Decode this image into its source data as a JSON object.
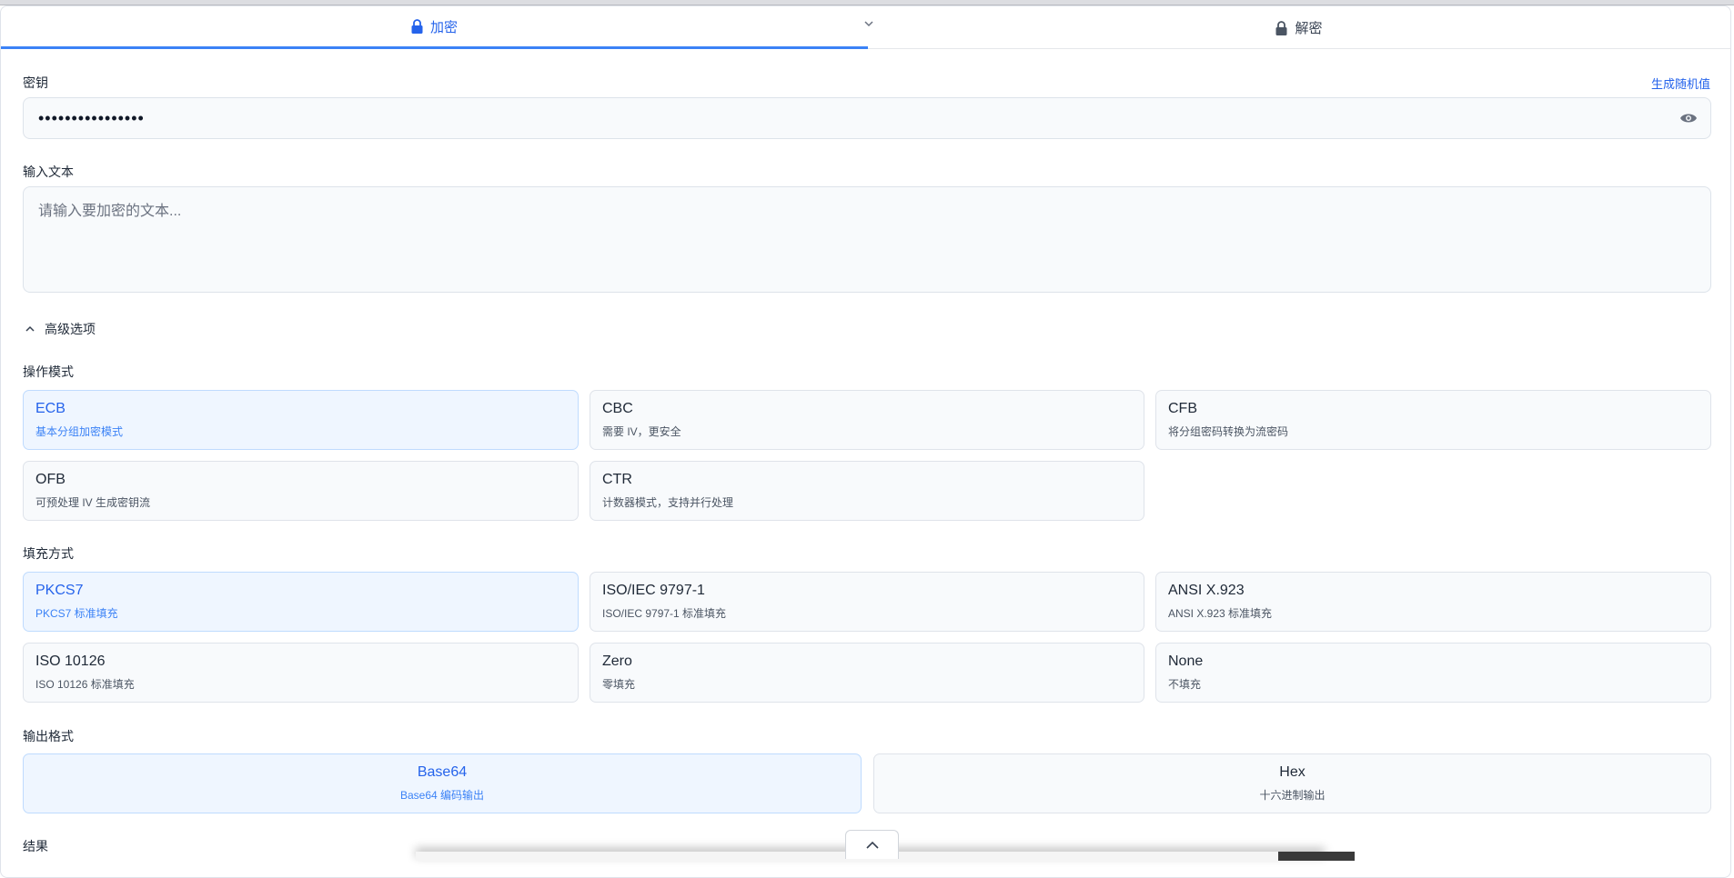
{
  "tabs": [
    {
      "label": "加密",
      "active": true,
      "icon": "lock-icon"
    },
    {
      "label": "解密",
      "active": false,
      "icon": "lock-icon"
    }
  ],
  "key": {
    "label": "密钥",
    "generate_label": "生成随机值",
    "value": "••••••••••••••••"
  },
  "input": {
    "label": "输入文本",
    "placeholder": "请输入要加密的文本..."
  },
  "advanced": {
    "label": "高级选项",
    "expanded": true
  },
  "mode": {
    "label": "操作模式",
    "options": [
      {
        "title": "ECB",
        "desc": "基本分组加密模式",
        "selected": true
      },
      {
        "title": "CBC",
        "desc": "需要 IV，更安全"
      },
      {
        "title": "CFB",
        "desc": "将分组密码转换为流密码"
      },
      {
        "title": "OFB",
        "desc": "可预处理 IV 生成密钥流"
      },
      {
        "title": "CTR",
        "desc": "计数器模式，支持并行处理"
      }
    ]
  },
  "padding": {
    "label": "填充方式",
    "options": [
      {
        "title": "PKCS7",
        "desc": "PKCS7 标准填充",
        "selected": true
      },
      {
        "title": "ISO/IEC 9797-1",
        "desc": "ISO/IEC 9797-1 标准填充"
      },
      {
        "title": "ANSI X.923",
        "desc": "ANSI X.923 标准填充"
      },
      {
        "title": "ISO 10126",
        "desc": "ISO 10126 标准填充"
      },
      {
        "title": "Zero",
        "desc": "零填充"
      },
      {
        "title": "None",
        "desc": "不填充"
      }
    ]
  },
  "output": {
    "label": "输出格式",
    "options": [
      {
        "title": "Base64",
        "desc": "Base64 编码输出",
        "selected": true
      },
      {
        "title": "Hex",
        "desc": "十六进制输出"
      }
    ]
  },
  "result": {
    "label": "结果"
  },
  "colors": {
    "accent": "#2563eb",
    "selected_bg": "#eff6ff"
  }
}
